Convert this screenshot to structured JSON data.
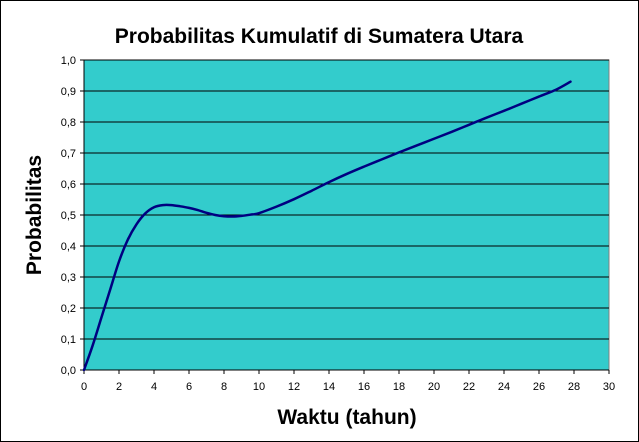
{
  "chart_data": {
    "type": "line",
    "title": "Probabilitas Kumulatif di  Sumatera Utara",
    "xlabel": "Waktu (tahun)",
    "ylabel": "Probabilitas",
    "xlim": [
      0,
      30
    ],
    "ylim": [
      0,
      1
    ],
    "xticks": [
      "0",
      "2",
      "4",
      "6",
      "8",
      "10",
      "12",
      "14",
      "16",
      "18",
      "20",
      "22",
      "24",
      "26",
      "28",
      "30"
    ],
    "yticks": [
      "0,0",
      "0,1",
      "0,2",
      "0,3",
      "0,4",
      "0,5",
      "0,6",
      "0,7",
      "0,8",
      "0,9",
      "1,0"
    ],
    "grid": true,
    "legend": "none",
    "colors": {
      "plot_background": "#33CCCC",
      "line": "#000080",
      "gridline": "#000000",
      "page_background": "#FFFFFF"
    },
    "series": [
      {
        "x": [
          0,
          0.5,
          1,
          1.5,
          2,
          2.5,
          3,
          3.5,
          4,
          4.5,
          5,
          5.5,
          6,
          6.5,
          7,
          7.5,
          8,
          8.5,
          9,
          9.5,
          10,
          11,
          12,
          13,
          14,
          15,
          16,
          17,
          18,
          19,
          20,
          21,
          22,
          23,
          24,
          25,
          26,
          27,
          27.8
        ],
        "y": [
          0,
          0.08,
          0.17,
          0.26,
          0.35,
          0.42,
          0.47,
          0.505,
          0.525,
          0.532,
          0.532,
          0.528,
          0.523,
          0.516,
          0.507,
          0.5,
          0.496,
          0.495,
          0.497,
          0.501,
          0.506,
          0.527,
          0.551,
          0.578,
          0.606,
          0.632,
          0.656,
          0.679,
          0.702,
          0.724,
          0.746,
          0.768,
          0.791,
          0.814,
          0.836,
          0.859,
          0.882,
          0.905,
          0.93
        ]
      }
    ]
  }
}
